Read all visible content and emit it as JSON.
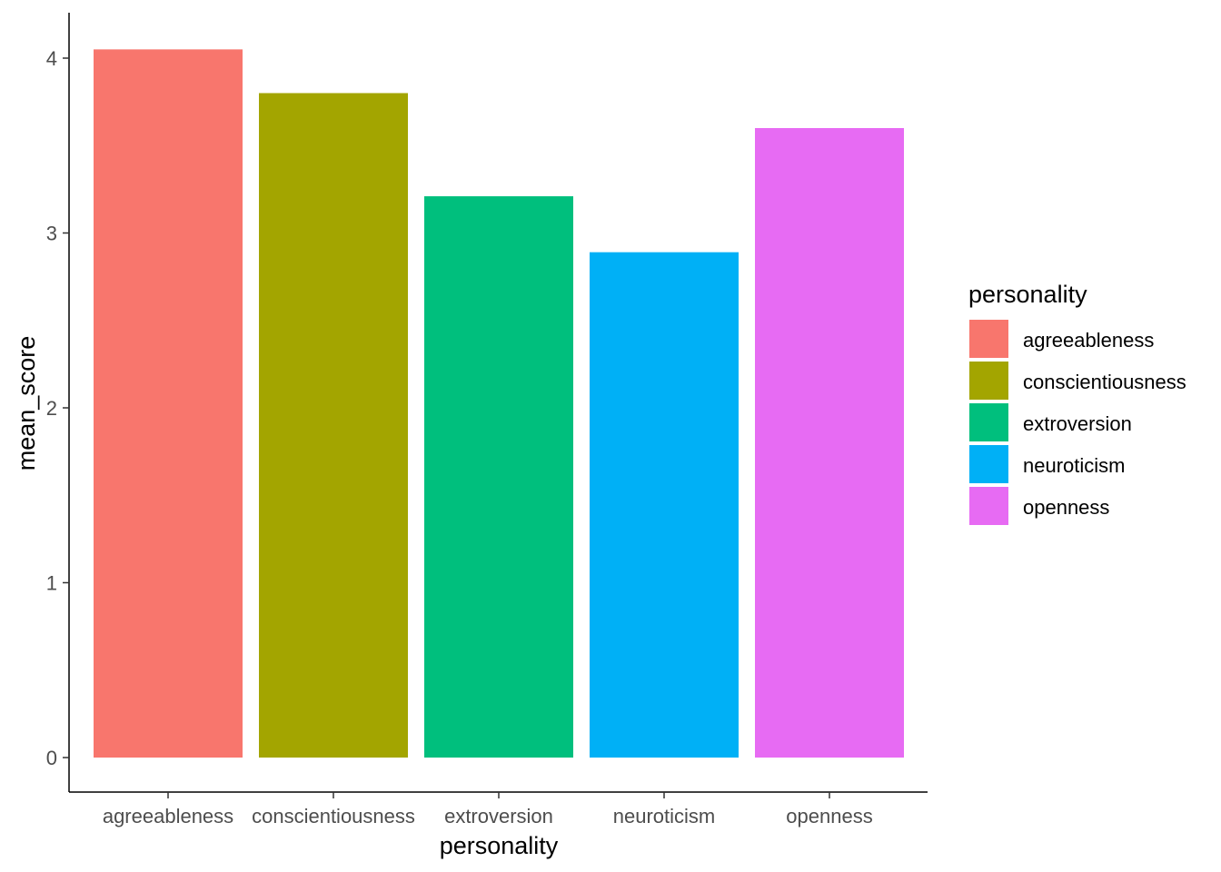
{
  "chart_data": {
    "type": "bar",
    "categories": [
      "agreeableness",
      "conscientiousness",
      "extroversion",
      "neuroticism",
      "openness"
    ],
    "values": [
      4.05,
      3.8,
      3.21,
      2.89,
      3.6
    ],
    "colors": [
      "#F8766D",
      "#A3A500",
      "#00BF7D",
      "#00B0F6",
      "#E76BF3"
    ],
    "xlabel": "personality",
    "ylabel": "mean_score",
    "ylim": [
      0,
      4.25
    ],
    "yticks": [
      0,
      1,
      2,
      3,
      4
    ],
    "grid": false,
    "legend": {
      "title": "personality",
      "position": "right",
      "entries": [
        "agreeableness",
        "conscientiousness",
        "extroversion",
        "neuroticism",
        "openness"
      ]
    }
  }
}
